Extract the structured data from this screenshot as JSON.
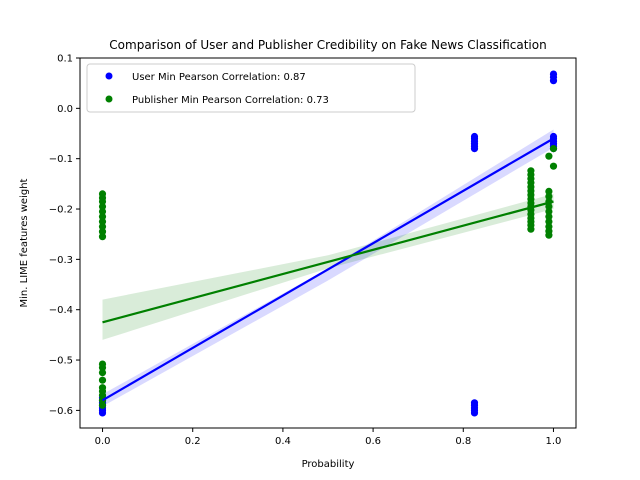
{
  "chart_data": {
    "type": "scatter",
    "title": "Comparison of User and Publisher Credibility on Fake News Classification",
    "xlabel": "Probability",
    "ylabel": "Min. LIME features weight",
    "xlim": [
      -0.05,
      1.05
    ],
    "ylim": [
      -0.635,
      0.1
    ],
    "xticks": [
      0.0,
      0.2,
      0.4,
      0.6,
      0.8,
      1.0
    ],
    "xtick_labels": [
      "0.0",
      "0.2",
      "0.4",
      "0.6",
      "0.8",
      "1.0"
    ],
    "yticks": [
      -0.6,
      -0.5,
      -0.4,
      -0.3,
      -0.2,
      -0.1,
      0.0,
      0.1
    ],
    "ytick_labels": [
      "−0.6",
      "−0.5",
      "−0.4",
      "−0.3",
      "−0.2",
      "−0.1",
      "0.0",
      "0.1"
    ],
    "grid": false,
    "legend_position": "top-left",
    "series": [
      {
        "name": "User Min Pearson Correlation: 0.87",
        "color": "#0000ff",
        "points": [
          [
            0.0,
            -0.605
          ],
          [
            0.0,
            -0.6
          ],
          [
            0.0,
            -0.595
          ],
          [
            0.0,
            -0.59
          ],
          [
            0.0,
            -0.585
          ],
          [
            0.0,
            -0.58
          ],
          [
            0.0,
            -0.575
          ],
          [
            0.825,
            -0.605
          ],
          [
            0.825,
            -0.6
          ],
          [
            0.825,
            -0.595
          ],
          [
            0.825,
            -0.59
          ],
          [
            0.825,
            -0.585
          ],
          [
            0.825,
            -0.08
          ],
          [
            0.825,
            -0.075
          ],
          [
            0.825,
            -0.07
          ],
          [
            0.825,
            -0.065
          ],
          [
            0.825,
            -0.06
          ],
          [
            0.825,
            -0.056
          ],
          [
            1.0,
            -0.08
          ],
          [
            1.0,
            -0.075
          ],
          [
            1.0,
            -0.07
          ],
          [
            1.0,
            -0.065
          ],
          [
            1.0,
            -0.06
          ],
          [
            1.0,
            -0.056
          ],
          [
            1.0,
            0.055
          ],
          [
            1.0,
            0.062
          ],
          [
            1.0,
            0.068
          ]
        ],
        "fit": {
          "x": [
            0.0,
            1.0
          ],
          "y": [
            -0.58,
            -0.06
          ]
        },
        "ci_upper": {
          "x": [
            0.0,
            0.5,
            1.0
          ],
          "y": [
            -0.568,
            -0.318,
            -0.042
          ]
        },
        "ci_lower": {
          "x": [
            0.0,
            0.5,
            1.0
          ],
          "y": [
            -0.592,
            -0.342,
            -0.078
          ]
        }
      },
      {
        "name": "Publisher Min Pearson Correlation: 0.73",
        "color": "#008000",
        "points": [
          [
            0.0,
            -0.255
          ],
          [
            0.0,
            -0.245
          ],
          [
            0.0,
            -0.235
          ],
          [
            0.0,
            -0.225
          ],
          [
            0.0,
            -0.215
          ],
          [
            0.0,
            -0.205
          ],
          [
            0.0,
            -0.195
          ],
          [
            0.0,
            -0.185
          ],
          [
            0.0,
            -0.178
          ],
          [
            0.0,
            -0.17
          ],
          [
            0.0,
            -0.59
          ],
          [
            0.0,
            -0.58
          ],
          [
            0.0,
            -0.57
          ],
          [
            0.0,
            -0.562
          ],
          [
            0.0,
            -0.555
          ],
          [
            0.0,
            -0.54
          ],
          [
            0.0,
            -0.525
          ],
          [
            0.0,
            -0.515
          ],
          [
            0.0,
            -0.508
          ],
          [
            0.95,
            -0.24
          ],
          [
            0.95,
            -0.232
          ],
          [
            0.95,
            -0.225
          ],
          [
            0.95,
            -0.218
          ],
          [
            0.95,
            -0.21
          ],
          [
            0.95,
            -0.202
          ],
          [
            0.95,
            -0.195
          ],
          [
            0.95,
            -0.188
          ],
          [
            0.95,
            -0.18
          ],
          [
            0.95,
            -0.172
          ],
          [
            0.95,
            -0.164
          ],
          [
            0.95,
            -0.156
          ],
          [
            0.95,
            -0.148
          ],
          [
            0.95,
            -0.14
          ],
          [
            0.95,
            -0.132
          ],
          [
            0.95,
            -0.124
          ],
          [
            0.99,
            -0.252
          ],
          [
            0.99,
            -0.244
          ],
          [
            0.99,
            -0.235
          ],
          [
            0.99,
            -0.225
          ],
          [
            0.99,
            -0.215
          ],
          [
            0.99,
            -0.205
          ],
          [
            0.99,
            -0.195
          ],
          [
            0.99,
            -0.185
          ],
          [
            0.99,
            -0.175
          ],
          [
            0.99,
            -0.165
          ],
          [
            0.99,
            -0.095
          ],
          [
            1.0,
            -0.115
          ],
          [
            1.0,
            -0.08
          ]
        ],
        "fit": {
          "x": [
            0.0,
            1.0
          ],
          "y": [
            -0.425,
            -0.185
          ]
        },
        "ci_upper": {
          "x": [
            0.0,
            0.5,
            1.0
          ],
          "y": [
            -0.38,
            -0.292,
            -0.17
          ]
        },
        "ci_lower": {
          "x": [
            0.0,
            0.5,
            1.0
          ],
          "y": [
            -0.46,
            -0.318,
            -0.2
          ]
        }
      }
    ]
  }
}
